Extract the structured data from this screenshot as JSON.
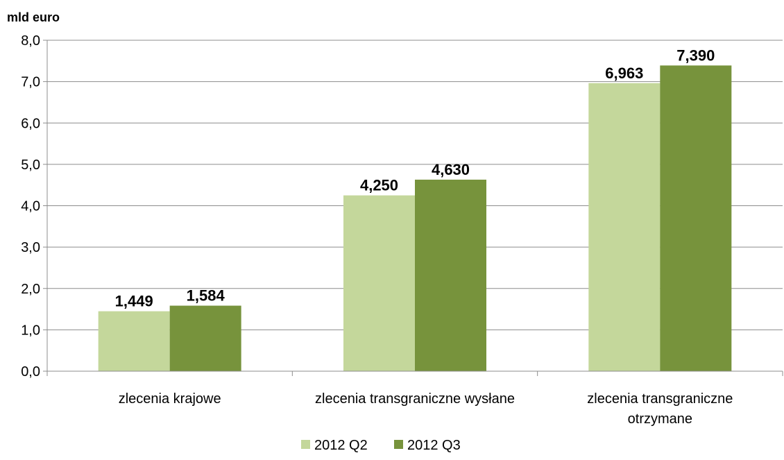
{
  "chart_data": {
    "type": "bar",
    "ylabel": "mld euro",
    "xlabel": "",
    "ylim": [
      0,
      8
    ],
    "yticks": [
      "0,0",
      "1,0",
      "2,0",
      "3,0",
      "4,0",
      "5,0",
      "6,0",
      "7,0",
      "8,0"
    ],
    "grid": true,
    "legend_position": "bottom",
    "categories": [
      [
        "zlecenia krajowe"
      ],
      [
        "zlecenia transgraniczne wysłane"
      ],
      [
        "zlecenia transgraniczne",
        "otrzymane"
      ]
    ],
    "series": [
      {
        "name": "2012 Q2",
        "color": "#c4d79b",
        "values": [
          1.449,
          4.25,
          6.963
        ],
        "labels": [
          "1,449",
          "4,250",
          "6,963"
        ]
      },
      {
        "name": "2012 Q3",
        "color": "#77933c",
        "values": [
          1.584,
          4.63,
          7.39
        ],
        "labels": [
          "1,584",
          "4,630",
          "7,390"
        ]
      }
    ]
  }
}
